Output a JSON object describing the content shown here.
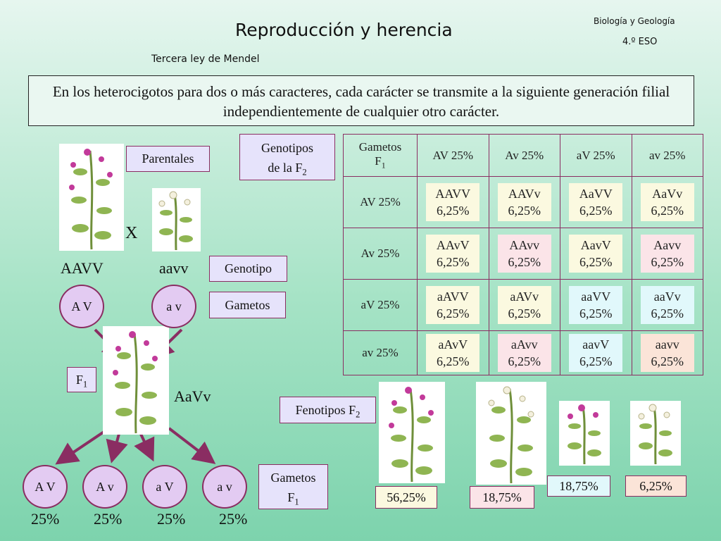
{
  "header": {
    "title": "Reproducción y herencia",
    "subtitle": "Tercera ley de Mendel",
    "course_line1": "Biología y Geología",
    "course_line2": "4.º ESO"
  },
  "law_text": "En los heterocigotos para dos o más caracteres, cada carácter se transmite a la siguiente generación filial independientemente de cualquier otro carácter.",
  "labels": {
    "parentales": "Parentales",
    "genotipo": "Genotipo",
    "gametos": "Gametos",
    "f1": "F",
    "f1_sub": "1",
    "genotipos_f2_line1": "Genotipos",
    "genotipos_f2_line2": "de la F",
    "genotipos_f2_sub": "2",
    "fenotipos_f2": "Fenotipos F",
    "fenotipos_f2_sub": "2",
    "gametos_f1_line1": "Gametos",
    "gametos_f1_line2": "F",
    "gametos_f1_sub": "1",
    "cross": "X"
  },
  "parents": {
    "p1_genotype": "AAVV",
    "p2_genotype": "aavv",
    "p1_gamete": "A V",
    "p2_gamete": "a v",
    "f1_genotype": "AaVv"
  },
  "f1_gametes": [
    {
      "label": "A V",
      "pct": "25%"
    },
    {
      "label": "A v",
      "pct": "25%"
    },
    {
      "label": "a V",
      "pct": "25%"
    },
    {
      "label": "a v",
      "pct": "25%"
    }
  ],
  "punnett": {
    "corner_line1": "Gametos",
    "corner_line2": "F",
    "corner_sub": "1",
    "cols": [
      "AV 25%",
      "Av 25%",
      "aV 25%",
      "av 25%"
    ],
    "rows": [
      {
        "label": "AV 25%",
        "cells": [
          {
            "g": "AAVV",
            "p": "6,25%",
            "color": "#fbf9e0"
          },
          {
            "g": "AAVv",
            "p": "6,25%",
            "color": "#fbf9e0"
          },
          {
            "g": "AaVV",
            "p": "6,25%",
            "color": "#fbf9e0"
          },
          {
            "g": "AaVv",
            "p": "6,25%",
            "color": "#fbf9e0"
          }
        ]
      },
      {
        "label": "Av 25%",
        "cells": [
          {
            "g": "AAvV",
            "p": "6,25%",
            "color": "#fbf9e0"
          },
          {
            "g": "AAvv",
            "p": "6,25%",
            "color": "#fbe4e8"
          },
          {
            "g": "AavV",
            "p": "6,25%",
            "color": "#fbf9e0"
          },
          {
            "g": "Aavv",
            "p": "6,25%",
            "color": "#fbe4e8"
          }
        ]
      },
      {
        "label": "aV 25%",
        "cells": [
          {
            "g": "aAVV",
            "p": "6,25%",
            "color": "#fbf9e0"
          },
          {
            "g": "aAVv",
            "p": "6,25%",
            "color": "#fbf9e0"
          },
          {
            "g": "aaVV",
            "p": "6,25%",
            "color": "#e1f8fb"
          },
          {
            "g": "aaVv",
            "p": "6,25%",
            "color": "#e1f8fb"
          }
        ]
      },
      {
        "label": "av 25%",
        "cells": [
          {
            "g": "aAvV",
            "p": "6,25%",
            "color": "#fbf9e0"
          },
          {
            "g": "aAvv",
            "p": "6,25%",
            "color": "#fbe4e8"
          },
          {
            "g": "aavV",
            "p": "6,25%",
            "color": "#e1f8fb"
          },
          {
            "g": "aavv",
            "p": "6,25%",
            "color": "#fbe4d8"
          }
        ]
      }
    ]
  },
  "phenotypes": [
    {
      "pct": "56,25%",
      "color": "#fbf9e0"
    },
    {
      "pct": "18,75%",
      "color": "#fbe4e8"
    },
    {
      "pct": "18,75%",
      "color": "#e1f8fb"
    },
    {
      "pct": "6,25%",
      "color": "#fbe4d8"
    }
  ],
  "icons": {
    "plant": "pea-plant-icon",
    "arrow": "arrow-icon"
  }
}
